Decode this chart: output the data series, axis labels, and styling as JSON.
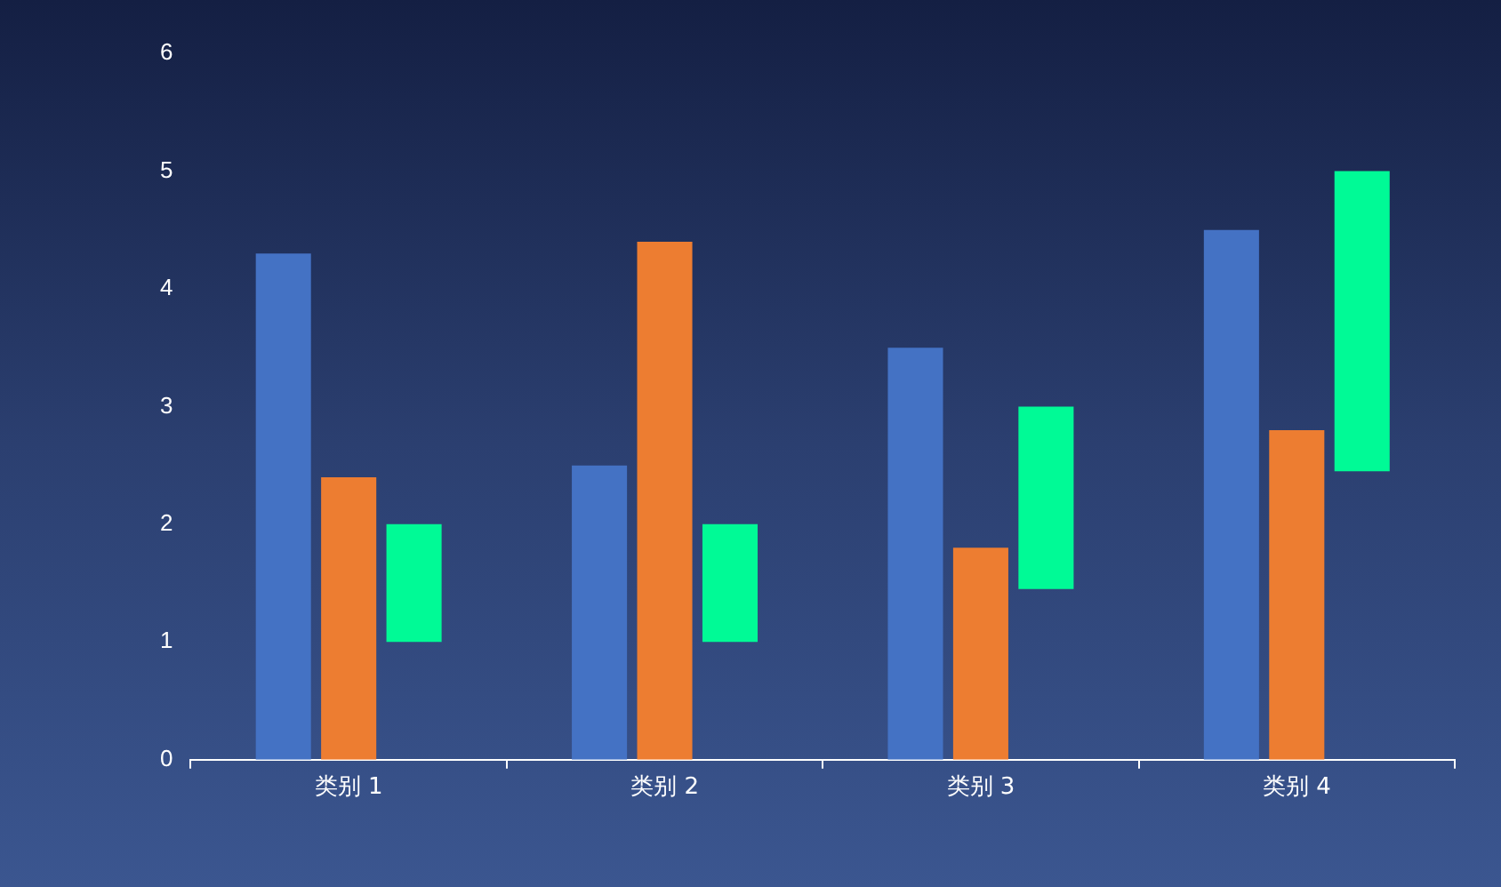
{
  "chart_data": {
    "type": "bar",
    "categories": [
      "类别 1",
      "类别 2",
      "类别 3",
      "类别 4"
    ],
    "series": [
      {
        "color": "#4472c4",
        "values": [
          4.3,
          2.5,
          3.5,
          4.5
        ]
      },
      {
        "color": "#ed7d31",
        "values": [
          2.4,
          4.4,
          1.8,
          2.8
        ]
      },
      {
        "color": "#00fa96",
        "values": [
          1,
          1,
          1.55,
          2.55
        ],
        "base": [
          1,
          1,
          1.45,
          2.45
        ]
      }
    ],
    "ylim": [
      0,
      6
    ],
    "yticks": [
      0,
      1,
      2,
      3,
      4,
      5,
      6
    ],
    "grid": false,
    "legend": false
  }
}
